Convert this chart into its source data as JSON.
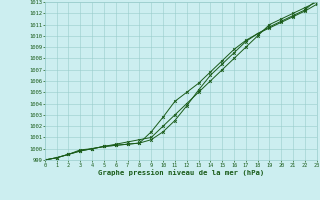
{
  "title": "Graphe pression niveau de la mer (hPa)",
  "xlim": [
    0,
    23
  ],
  "ylim": [
    999,
    1013
  ],
  "xticks": [
    0,
    1,
    2,
    3,
    4,
    5,
    6,
    7,
    8,
    9,
    10,
    11,
    12,
    13,
    14,
    15,
    16,
    17,
    18,
    19,
    20,
    21,
    22,
    23
  ],
  "yticks": [
    999,
    1000,
    1001,
    1002,
    1003,
    1004,
    1005,
    1006,
    1007,
    1008,
    1009,
    1010,
    1011,
    1012,
    1013
  ],
  "bg_color": "#cceef0",
  "grid_color": "#99cccc",
  "line_color": "#1a5c1a",
  "curve1_x": [
    0,
    1,
    2,
    3,
    4,
    5,
    6,
    7,
    8,
    9,
    10,
    11,
    12,
    13,
    14,
    15,
    16,
    17,
    18,
    19,
    20,
    21,
    22,
    23
  ],
  "curve1_y": [
    999.0,
    999.2,
    999.5,
    999.8,
    1000.0,
    1000.2,
    1000.4,
    1000.6,
    1000.8,
    1001.0,
    1002.0,
    1003.0,
    1004.0,
    1005.0,
    1006.0,
    1007.0,
    1008.0,
    1009.0,
    1010.0,
    1011.0,
    1011.5,
    1012.0,
    1012.5,
    1013.0
  ],
  "curve2_x": [
    0,
    1,
    2,
    3,
    4,
    5,
    6,
    7,
    8,
    9,
    10,
    11,
    12,
    13,
    14,
    15,
    16,
    17,
    18,
    19,
    20,
    21,
    22,
    23
  ],
  "curve2_y": [
    999.0,
    999.2,
    999.5,
    999.8,
    1000.0,
    1000.2,
    1000.3,
    1000.4,
    1000.5,
    1000.8,
    1001.5,
    1002.5,
    1003.8,
    1005.2,
    1006.5,
    1007.5,
    1008.5,
    1009.5,
    1010.2,
    1010.8,
    1011.3,
    1011.8,
    1012.3,
    1013.2
  ],
  "curve3_x": [
    0,
    1,
    2,
    3,
    4,
    5,
    6,
    7,
    8,
    9,
    10,
    11,
    12,
    13,
    14,
    15,
    16,
    17,
    18,
    19,
    20,
    21,
    22,
    23
  ],
  "curve3_y": [
    999.0,
    999.2,
    999.5,
    999.9,
    1000.0,
    1000.2,
    1000.3,
    1000.4,
    1000.5,
    1001.5,
    1002.8,
    1004.2,
    1005.0,
    1005.8,
    1006.8,
    1007.8,
    1008.8,
    1009.6,
    1010.2,
    1010.7,
    1011.2,
    1011.7,
    1012.2,
    1012.8
  ]
}
